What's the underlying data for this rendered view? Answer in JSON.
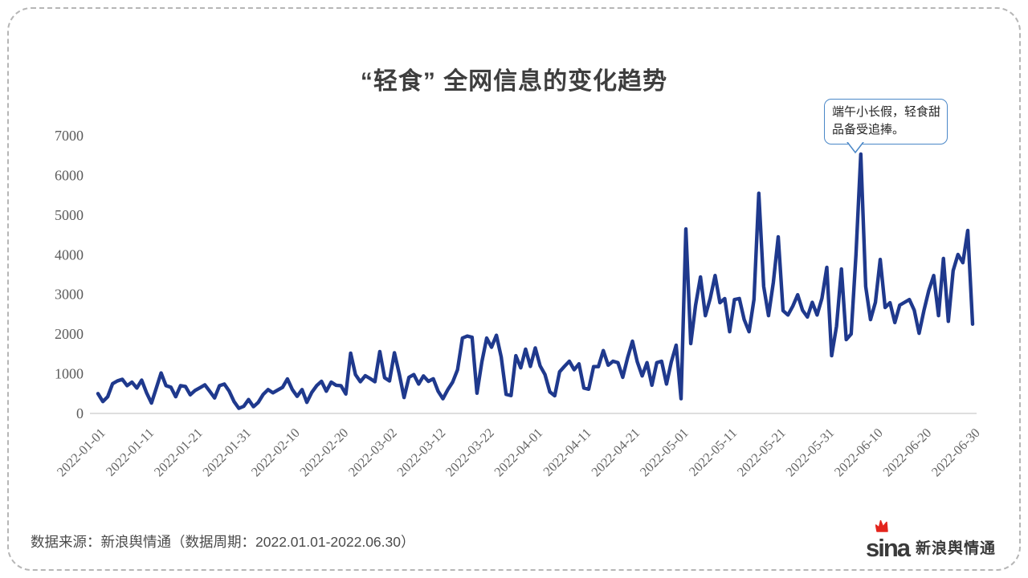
{
  "title": "“轻食” 全网信息的变化趋势",
  "annotation": {
    "text": "端午小长假，轻食甜品备受追捧。",
    "border_color": "#4a87c7",
    "points_to_date": "2022-06-06",
    "points_to_value": 6535
  },
  "footer": {
    "source": "数据来源：新浪舆情通（数据周期：2022.01.01-2022.06.30）"
  },
  "logo": {
    "wordmark": "sina",
    "name": "新浪舆情通",
    "flame_color": "#e3241d",
    "text_color": "#3a3a3a"
  },
  "colors": {
    "line": "#1f398d",
    "axis_line": "#cbcbcb",
    "axis_label": "#5a5a5a",
    "title_text": "#3e3e3e",
    "card_dash_border": "#b6b6b6"
  },
  "chart_data": {
    "type": "line",
    "title": "“轻食” 全网信息的变化趋势",
    "xlabel": "",
    "ylabel": "",
    "x_start": "2022-01-01",
    "x_end": "2022-06-30",
    "x_interval": "daily",
    "x_tick_labels": [
      "2022-01-01",
      "2022-01-11",
      "2022-01-21",
      "2022-01-31",
      "2022-02-10",
      "2022-02-20",
      "2022-03-02",
      "2022-03-12",
      "2022-03-22",
      "2022-04-01",
      "2022-04-11",
      "2022-04-21",
      "2022-05-01",
      "2022-05-11",
      "2022-05-21",
      "2022-05-31",
      "2022-06-10",
      "2022-06-20",
      "2022-06-30"
    ],
    "x_tick_every_days": 10,
    "y_ticks": [
      0,
      1000,
      2000,
      3000,
      4000,
      5000,
      6000,
      7000
    ],
    "ylim": [
      0,
      7000
    ],
    "grid": false,
    "legend_position": "none",
    "line_color": "#1f398d",
    "series": [
      {
        "name": "轻食",
        "values": [
          500,
          300,
          420,
          750,
          820,
          860,
          700,
          790,
          640,
          840,
          520,
          260,
          640,
          1020,
          700,
          660,
          420,
          700,
          680,
          470,
          580,
          650,
          720,
          560,
          390,
          700,
          740,
          560,
          300,
          130,
          180,
          350,
          170,
          280,
          480,
          600,
          520,
          590,
          660,
          870,
          600,
          430,
          600,
          280,
          530,
          700,
          810,
          560,
          790,
          710,
          700,
          490,
          1520,
          980,
          800,
          950,
          880,
          800,
          1560,
          900,
          820,
          1530,
          1000,
          400,
          910,
          980,
          740,
          945,
          810,
          875,
          560,
          370,
          600,
          790,
          1100,
          1900,
          1950,
          1920,
          510,
          1300,
          1900,
          1670,
          1970,
          1420,
          480,
          450,
          1455,
          1150,
          1620,
          1185,
          1650,
          1200,
          980,
          545,
          445,
          1050,
          1185,
          1315,
          1100,
          1250,
          640,
          610,
          1180,
          1180,
          1585,
          1215,
          1315,
          1280,
          910,
          1400,
          1820,
          1300,
          945,
          1280,
          710,
          1280,
          1315,
          740,
          1300,
          1720,
          370,
          4650,
          1760,
          2730,
          3440,
          2465,
          2900,
          3475,
          2790,
          2895,
          2060,
          2870,
          2895,
          2365,
          2060,
          2870,
          5550,
          3200,
          2465,
          3300,
          4450,
          2590,
          2480,
          2700,
          2990,
          2600,
          2430,
          2800,
          2480,
          2900,
          3680,
          1455,
          2200,
          3640,
          1860,
          2000,
          4000,
          6535,
          3200,
          2365,
          2800,
          3880,
          2670,
          2790,
          2290,
          2730,
          2800,
          2870,
          2600,
          2020,
          2600,
          3100,
          3475,
          2465,
          3905,
          2320,
          3600,
          4005,
          3800,
          4610,
          2250
        ]
      }
    ]
  }
}
